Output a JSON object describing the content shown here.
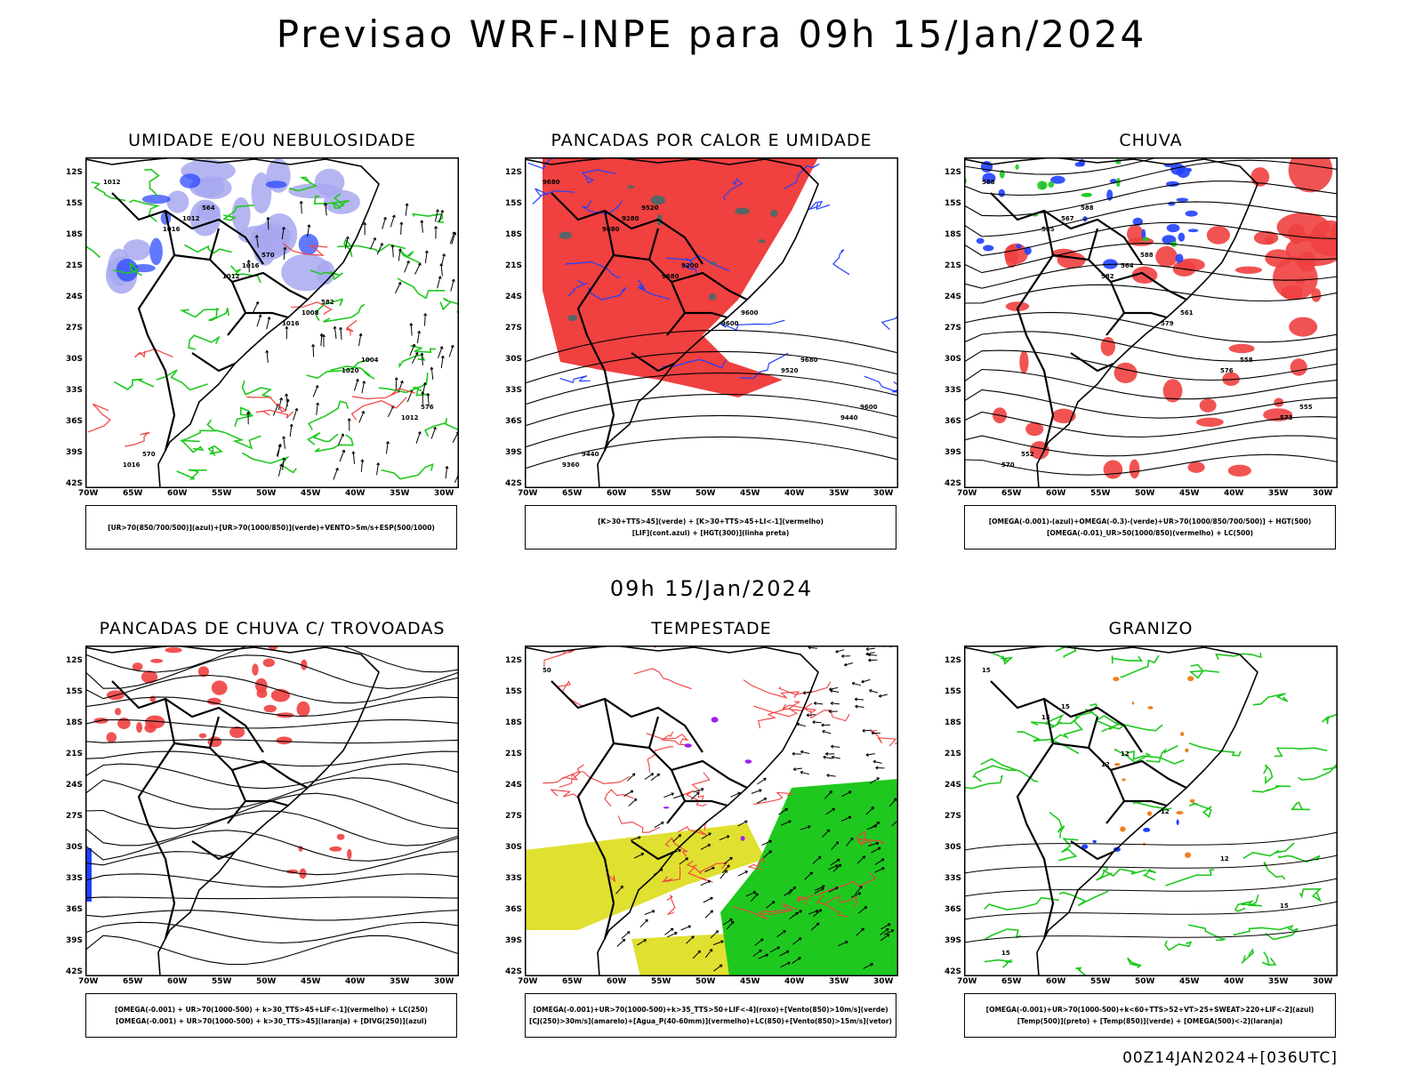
{
  "title": "Previsao WRF-INPE  para 09h 15/Jan/2024",
  "mid_time": "09h 15/Jan/2024",
  "footer": "00Z14JAN2024+[036UTC]",
  "axes": {
    "lat_labels": [
      "12S",
      "15S",
      "18S",
      "21S",
      "24S",
      "27S",
      "30S",
      "33S",
      "36S",
      "39S",
      "42S"
    ],
    "lon_labels": [
      "70W",
      "65W",
      "60W",
      "55W",
      "50W",
      "45W",
      "40W",
      "35W",
      "30W"
    ]
  },
  "colors": {
    "red": "#f04040",
    "green": "#1fc81f",
    "blue": "#2040ff",
    "lavender": "#a8a8f0",
    "yellow": "#e0e030",
    "orange": "#f08020",
    "purple": "#a020f0"
  },
  "panels": [
    {
      "title": "UMIDADE E/OU NEBULOSIDADE",
      "legend": [
        "[UR>70(850/700/500)](azul)+[UR>70(1000/850)](verde)+VENTO>5m/s+ESP(500/1000)"
      ],
      "labels": [
        "1012",
        "1016",
        "1012",
        "1016",
        "1020",
        "1012",
        "1016",
        "1012",
        "1016",
        "1008",
        "1004",
        "576",
        "570",
        "564",
        "570",
        "582"
      ]
    },
    {
      "title": "PANCADAS POR CALOR E UMIDADE",
      "legend": [
        "[K>30+TTS>45](verde) + [K>30+TTS>45+LI<-1](vermelho)",
        "[LIF](cont.azul) + [HGT(300)](linha preta)"
      ],
      "labels": [
        "9680",
        "9680",
        "9680",
        "9600",
        "9520",
        "9440",
        "9360",
        "9280",
        "9200",
        "9600",
        "9680",
        "9600",
        "9440",
        "9520"
      ]
    },
    {
      "title": "CHUVA",
      "legend": [
        "[OMEGA(-0.001)-(azul)+OMEGA(-0.3)-(verde)+UR>70(1000/850/700/500)] + HGT(500)",
        "[OMEGA(-0.01)_UR>50(1000/850)(vermelho) + LC(500)"
      ],
      "labels": [
        "588",
        "585",
        "582",
        "579",
        "576",
        "573",
        "570",
        "567",
        "564",
        "561",
        "558",
        "555",
        "552",
        "588",
        "588"
      ]
    },
    {
      "title": "PANCADAS DE CHUVA C/ TROVOADAS",
      "legend": [
        "[OMEGA(-0.001) + UR>70(1000-500) + k>30_TTS>45+LIF<-1](vermelho) + LC(250)",
        "[OMEGA(-0.001) + UR>70(1000-500) + k>30_TTS>45](laranja) + [DIVG(250)](azul)"
      ],
      "labels": []
    },
    {
      "title": "TEMPESTADE",
      "legend": [
        "[OMEGA(-0.001)+UR>70(1000-500)+k>35_TTS>50+LIF<-4](roxo)+[Vento(850)>10m/s](verde)",
        "[CJ(250)>30m/s](amarelo)+[Agua_P(40-60mm)](vermelho)+LC(850)+[Vento(850)>15m/s](vetor)"
      ],
      "labels": [
        "50"
      ]
    },
    {
      "title": "GRANIZO",
      "legend": [
        "[OMEGA(-0.001)+UR>70(1000-500)+k<60+TTS>52+VT>25+SWEAT>220+LIF<-2](azul)",
        "[Temp(500)](preto) + [Temp(850)](verde) + [OMEGA(500)<-2](laranja)"
      ],
      "labels": [
        "15",
        "15",
        "12",
        "12",
        "12",
        "15",
        "15",
        "15",
        "12"
      ]
    }
  ]
}
